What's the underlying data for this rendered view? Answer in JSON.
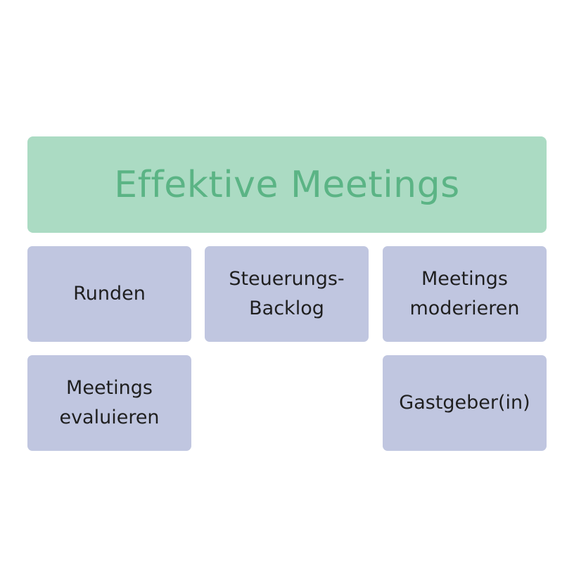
{
  "colors": {
    "header_fill": "#abdbc3",
    "header_text": "#5bb485",
    "tile_fill": "#c0c6e0",
    "tile_text": "#1f1f1f"
  },
  "header": {
    "title": "Effektive Meetings"
  },
  "tiles": [
    {
      "label": "Runden"
    },
    {
      "label": "Steuerungs-\nBacklog"
    },
    {
      "label": "Meetings\nmoderieren"
    },
    {
      "label": "Meetings\nevaluieren"
    },
    {
      "label": "Gastgeber(in)"
    }
  ]
}
